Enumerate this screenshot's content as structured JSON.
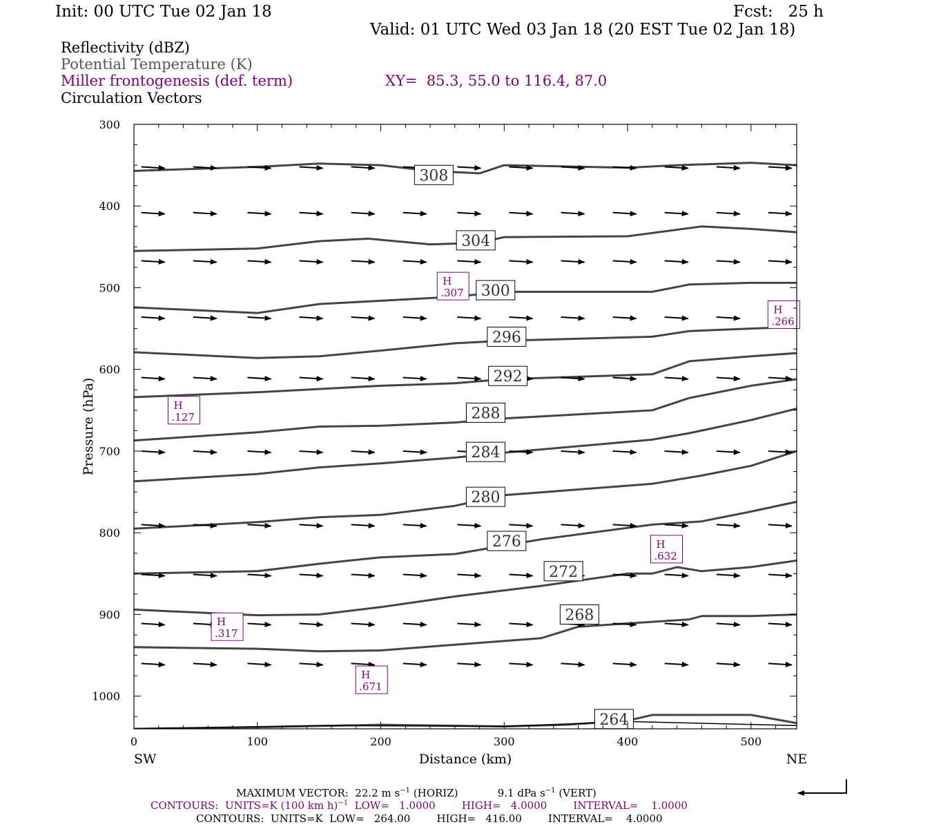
{
  "header": {
    "init": "Init: 00 UTC Tue 02 Jan 18",
    "fcst": "Fcst:   25 h",
    "valid": "Valid: 01 UTC Wed 03 Jan 18 (20 EST Tue 02 Jan 18)"
  },
  "legend": {
    "reflectivity": "Reflectivity (dBZ)",
    "theta": "Potential Temperature (K)",
    "miller": "Miller frontogenesis (def. term)",
    "xy": "XY=  85.3, 55.0 to 116.4, 87.0",
    "circulation": "Circulation Vectors"
  },
  "colors": {
    "theta": "#444444",
    "miller": "#800080",
    "vector": "#000000",
    "frame": "#000000"
  },
  "chart_data": {
    "type": "line",
    "xlabel": "Distance (km)",
    "ylabel": "Pressure (hPa)",
    "xlim": [
      0,
      537
    ],
    "ylim": [
      300,
      1040
    ],
    "y_axis": "pressure, increasing downward",
    "x_ticks": [
      0,
      100,
      200,
      300,
      400,
      500
    ],
    "y_ticks": [
      300,
      400,
      500,
      600,
      700,
      800,
      900,
      1000
    ],
    "x_end_labels": {
      "left": "SW",
      "right": "NE"
    },
    "theta_contours": [
      {
        "label": "308",
        "label_at": [
          243,
          362
        ],
        "points": [
          [
            0,
            357
          ],
          [
            100,
            352
          ],
          [
            150,
            348
          ],
          [
            200,
            350
          ],
          [
            240,
            357
          ],
          [
            280,
            360
          ],
          [
            300,
            350
          ],
          [
            400,
            353
          ],
          [
            440,
            350
          ],
          [
            500,
            347
          ],
          [
            537,
            350
          ]
        ]
      },
      {
        "label": "304",
        "label_at": [
          277,
          442
        ],
        "points": [
          [
            0,
            455
          ],
          [
            100,
            452
          ],
          [
            150,
            443
          ],
          [
            190,
            440
          ],
          [
            240,
            447
          ],
          [
            280,
            445
          ],
          [
            300,
            438
          ],
          [
            400,
            437
          ],
          [
            460,
            425
          ],
          [
            500,
            428
          ],
          [
            537,
            432
          ]
        ]
      },
      {
        "label": "300",
        "label_at": [
          293,
          503
        ],
        "points": [
          [
            0,
            524
          ],
          [
            100,
            531
          ],
          [
            150,
            520
          ],
          [
            200,
            516
          ],
          [
            260,
            511
          ],
          [
            300,
            505
          ],
          [
            420,
            505
          ],
          [
            450,
            496
          ],
          [
            500,
            494
          ],
          [
            537,
            494
          ]
        ]
      },
      {
        "label": "296",
        "label_at": [
          302,
          560
        ],
        "points": [
          [
            0,
            579
          ],
          [
            100,
            586
          ],
          [
            150,
            584
          ],
          [
            200,
            577
          ],
          [
            260,
            568
          ],
          [
            300,
            565
          ],
          [
            420,
            560
          ],
          [
            450,
            553
          ],
          [
            500,
            550
          ],
          [
            537,
            548
          ]
        ]
      },
      {
        "label": "292",
        "label_at": [
          303,
          608
        ],
        "points": [
          [
            0,
            634
          ],
          [
            100,
            628
          ],
          [
            150,
            624
          ],
          [
            200,
            620
          ],
          [
            260,
            617
          ],
          [
            300,
            612
          ],
          [
            420,
            606
          ],
          [
            450,
            590
          ],
          [
            500,
            584
          ],
          [
            537,
            580
          ]
        ]
      },
      {
        "label": "288",
        "label_at": [
          285,
          653
        ],
        "points": [
          [
            0,
            687
          ],
          [
            100,
            677
          ],
          [
            150,
            670
          ],
          [
            200,
            669
          ],
          [
            260,
            665
          ],
          [
            300,
            660
          ],
          [
            420,
            650
          ],
          [
            450,
            635
          ],
          [
            500,
            620
          ],
          [
            537,
            612
          ]
        ]
      },
      {
        "label": "284",
        "label_at": [
          285,
          701
        ],
        "points": [
          [
            0,
            737
          ],
          [
            100,
            728
          ],
          [
            150,
            720
          ],
          [
            200,
            715
          ],
          [
            260,
            708
          ],
          [
            300,
            702
          ],
          [
            420,
            686
          ],
          [
            450,
            678
          ],
          [
            500,
            662
          ],
          [
            537,
            648
          ]
        ]
      },
      {
        "label": "280",
        "label_at": [
          285,
          756
        ],
        "points": [
          [
            0,
            795
          ],
          [
            100,
            787
          ],
          [
            150,
            781
          ],
          [
            200,
            778
          ],
          [
            260,
            767
          ],
          [
            300,
            754
          ],
          [
            420,
            740
          ],
          [
            460,
            730
          ],
          [
            500,
            718
          ],
          [
            537,
            700
          ]
        ]
      },
      {
        "label": "276",
        "label_at": [
          302,
          810
        ],
        "points": [
          [
            0,
            850
          ],
          [
            100,
            847
          ],
          [
            150,
            838
          ],
          [
            200,
            830
          ],
          [
            260,
            826
          ],
          [
            330,
            808
          ],
          [
            420,
            790
          ],
          [
            460,
            786
          ],
          [
            500,
            774
          ],
          [
            537,
            762
          ]
        ]
      },
      {
        "label": "272",
        "label_at": [
          348,
          847
        ],
        "points": [
          [
            0,
            894
          ],
          [
            100,
            901
          ],
          [
            150,
            900
          ],
          [
            200,
            891
          ],
          [
            260,
            878
          ],
          [
            330,
            865
          ],
          [
            400,
            850
          ],
          [
            420,
            850
          ],
          [
            440,
            842
          ],
          [
            460,
            847
          ],
          [
            500,
            842
          ],
          [
            537,
            834
          ]
        ]
      },
      {
        "label": "268",
        "label_at": [
          361,
          900
        ],
        "points": [
          [
            0,
            940
          ],
          [
            100,
            942
          ],
          [
            150,
            945
          ],
          [
            200,
            944
          ],
          [
            260,
            937
          ],
          [
            330,
            929
          ],
          [
            360,
            915
          ],
          [
            420,
            909
          ],
          [
            450,
            906
          ],
          [
            460,
            902
          ],
          [
            500,
            902
          ],
          [
            537,
            900
          ]
        ]
      },
      {
        "label": "264",
        "label_at": [
          389,
          1028
        ],
        "points": [
          [
            0,
            1040
          ],
          [
            100,
            1038
          ],
          [
            200,
            1035
          ],
          [
            300,
            1037
          ],
          [
            350,
            1035
          ],
          [
            400,
            1030
          ],
          [
            420,
            1023
          ],
          [
            450,
            1023
          ],
          [
            500,
            1023
          ],
          [
            537,
            1033
          ]
        ]
      }
    ],
    "miller_maxima": [
      {
        "label": "H",
        "value": ".127",
        "x": 40,
        "p": 650
      },
      {
        "label": "H",
        "value": ".307",
        "x": 258,
        "p": 498
      },
      {
        "label": "H",
        "value": ".266",
        "x": 526,
        "p": 533
      },
      {
        "label": "H",
        "value": ".632",
        "x": 431,
        "p": 820
      },
      {
        "label": "H",
        "value": ".317",
        "x": 75,
        "p": 915
      },
      {
        "label": "H",
        "value": ".671",
        "x": 192,
        "p": 980
      }
    ],
    "circulation_vectors": {
      "x_positions": [
        6,
        48,
        92,
        134,
        176,
        218,
        262,
        304,
        346,
        388,
        430,
        472,
        514
      ],
      "pressure_levels": [
        352,
        408,
        467,
        536,
        610,
        700,
        790,
        851,
        911,
        960
      ],
      "maximum_vector": "MAXIMUM VECTOR:  22.2 m s",
      "max_horiz_units": "(HORIZ)",
      "max_vert": "9.1 dPa s",
      "max_vert_units": "(VERT)"
    },
    "contour_info": {
      "miller_line": "CONTOURS:  UNITS=K (100 km h)",
      "miller_rest": "  LOW=   1.0000        HIGH=   4.0000        INTERVAL=    1.0000",
      "theta_line": "CONTOURS:  UNITS=K  LOW=   264.00        HIGH=   416.00        INTERVAL=    4.0000"
    }
  }
}
